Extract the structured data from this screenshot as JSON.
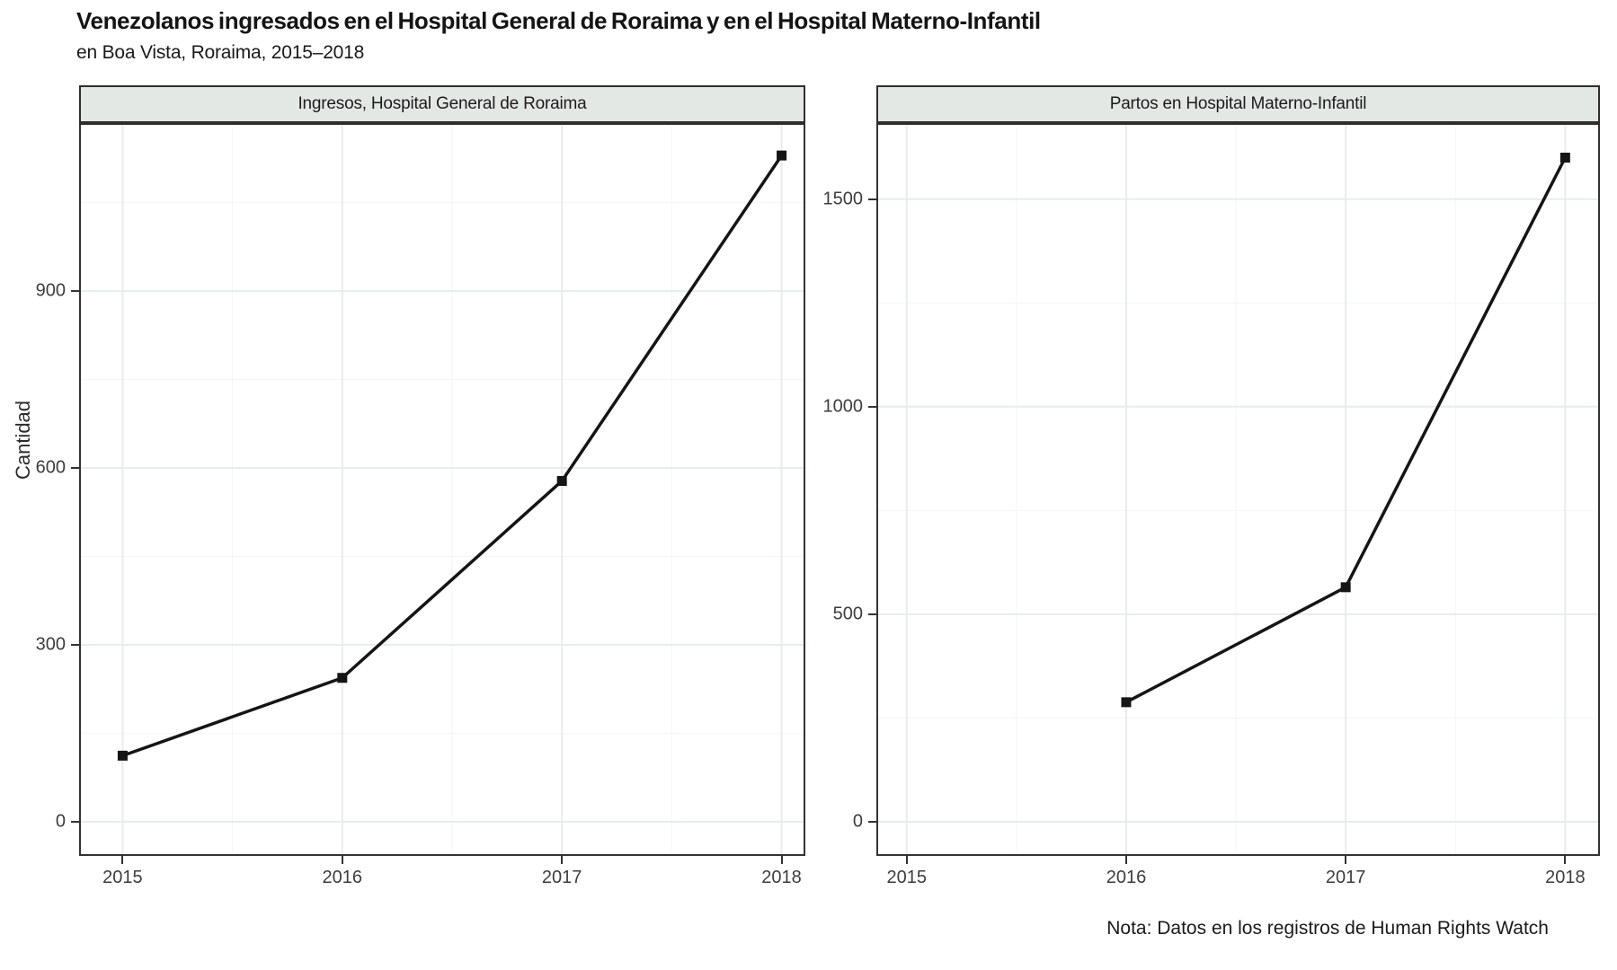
{
  "title": "Venezolanos ingresados en el Hospital General de Roraima y en el Hospital Materno-Infantil",
  "subtitle": "en Boa Vista, Roraima, 2015–2018",
  "note": "Nota: Datos en los registros de Human Rights Watch",
  "colors": {
    "strip_bg": "#e4e8e5",
    "border": "#2e2e2e",
    "axis": "#333333",
    "grid_major": "#e6edec",
    "grid_minor": "#f2f6f5",
    "line": "#151515",
    "text": "#1a1a1a",
    "tick_text": "#3d3d3d"
  },
  "chart_data": [
    {
      "type": "line",
      "title": "Ingresos, Hospital General de Roraima",
      "ylabel": "Cantidad",
      "xlabel": "",
      "x": [
        2015,
        2016,
        2017,
        2018
      ],
      "y": [
        112,
        244,
        578,
        1130
      ],
      "x_tick_values": [
        2015,
        2016,
        2017,
        2018
      ],
      "x_tick_labels": [
        "2015",
        "2016",
        "2017",
        "2018"
      ],
      "y_tick_values": [
        0,
        300,
        600,
        900
      ],
      "y_tick_labels": [
        "0",
        "300",
        "600",
        "900"
      ],
      "y_minor_values": [
        150,
        450,
        750,
        1050
      ],
      "xlim": [
        2014.81,
        2018.1
      ],
      "ylim": [
        -55,
        1182
      ],
      "grid": true,
      "legend": "none",
      "marker": "square"
    },
    {
      "type": "line",
      "title": "Partos en Hospital Materno-Infantil",
      "ylabel": "",
      "xlabel": "",
      "x": [
        2016,
        2017,
        2018
      ],
      "y": [
        288,
        565,
        1600
      ],
      "x_tick_values": [
        2015,
        2016,
        2017,
        2018
      ],
      "x_tick_labels": [
        "2015",
        "2016",
        "2017",
        "2018"
      ],
      "y_tick_values": [
        0,
        500,
        1000,
        1500
      ],
      "y_tick_labels": [
        "0",
        "500",
        "1000",
        "1500"
      ],
      "y_minor_values": [
        250,
        750,
        1250
      ],
      "xlim": [
        2014.87,
        2018.15
      ],
      "ylim": [
        -78,
        1679
      ],
      "grid": true,
      "legend": "none",
      "marker": "square"
    }
  ]
}
